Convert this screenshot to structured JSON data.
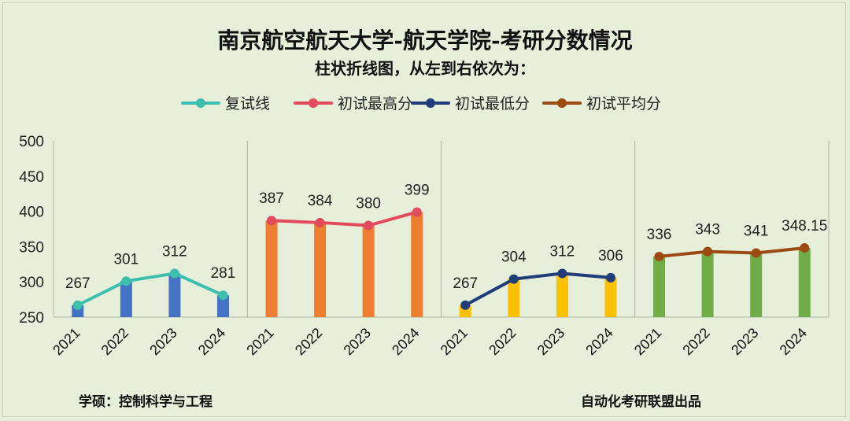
{
  "chart_data": {
    "type": "bar",
    "title": "南京航空航天大学-航天学院-考研分数情况",
    "subtitle": "柱状折线图，从左到右依次为：",
    "ylim": [
      250,
      500
    ],
    "yticks": [
      250,
      300,
      350,
      400,
      450,
      500
    ],
    "grid": "vertical-separators",
    "legend_position": "top",
    "categories": [
      "2021",
      "2022",
      "2023",
      "2024"
    ],
    "series": [
      {
        "name": "复试线",
        "values": [
          267,
          301,
          312,
          281
        ],
        "labels": [
          "267",
          "301",
          "312",
          "281"
        ],
        "bar_color": "#4472c4",
        "line_color": "#3dbfae"
      },
      {
        "name": "初试最高分",
        "values": [
          387,
          384,
          380,
          399
        ],
        "labels": [
          "387",
          "384",
          "380",
          "399"
        ],
        "bar_color": "#ed7d31",
        "line_color": "#e24a5e"
      },
      {
        "name": "初试最低分",
        "values": [
          267,
          304,
          312,
          306
        ],
        "labels": [
          "267",
          "304",
          "312",
          "306"
        ],
        "bar_color": "#ffc000",
        "line_color": "#203d7a"
      },
      {
        "name": "初试平均分",
        "values": [
          336,
          343,
          341,
          348.15
        ],
        "labels": [
          "336",
          "343",
          "341",
          "348.15"
        ],
        "bar_color": "#70ad47",
        "line_color": "#9c4a12"
      }
    ]
  },
  "footer": {
    "left": "学硕：控制科学与工程",
    "right": "自动化考研联盟出品"
  }
}
